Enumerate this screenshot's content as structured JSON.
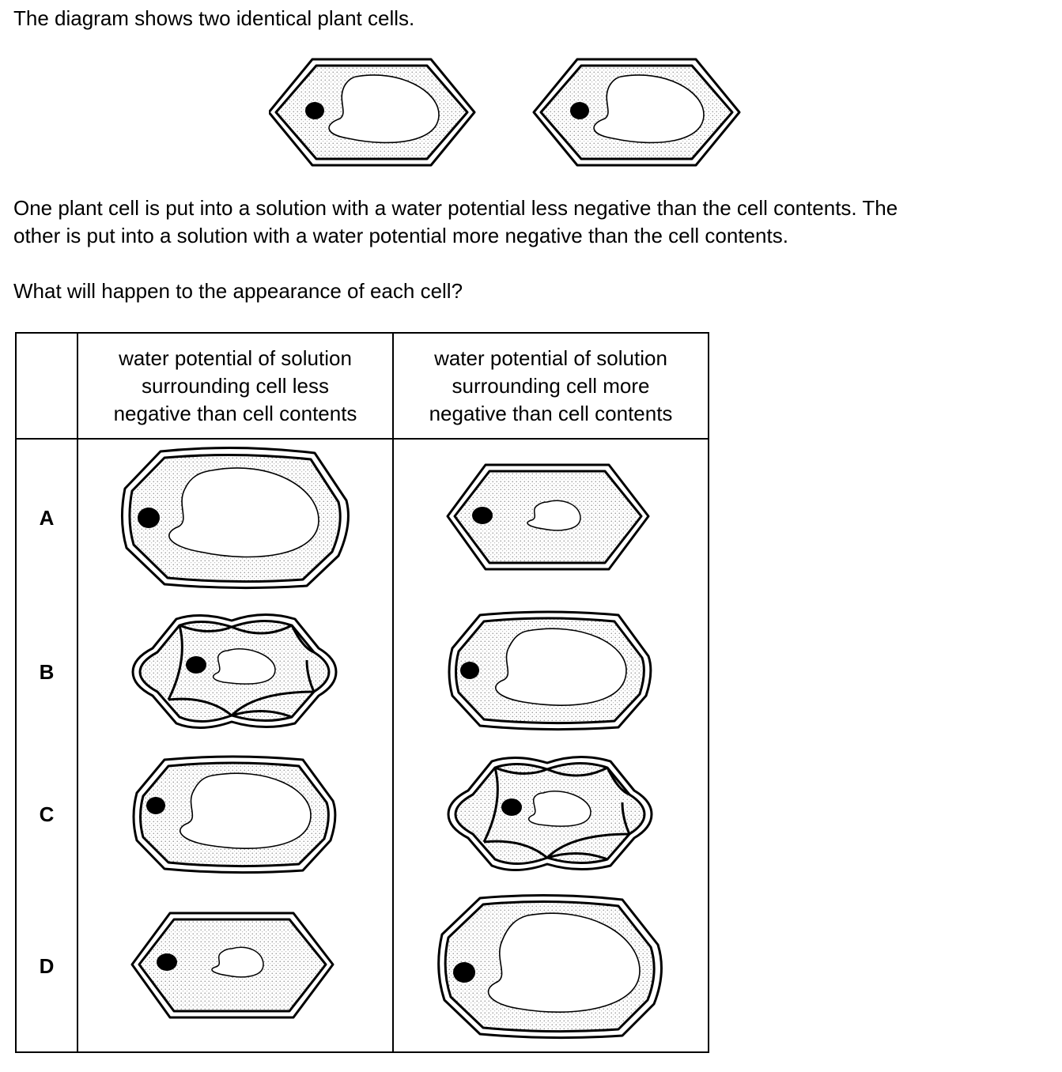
{
  "intro": "The diagram shows two identical plant cells.",
  "paragraph_line1": "One plant cell is put into a solution with a water potential less negative than the cell contents. The",
  "paragraph_line2": "other is put into a solution with a water potential more negative than the cell contents.",
  "question": "What will happen to the appearance of each cell?",
  "table": {
    "header_left": [
      "water potential of solution",
      "surrounding cell less",
      "negative than cell contents"
    ],
    "header_right": [
      "water potential of solution",
      "surrounding cell more",
      "negative than cell contents"
    ],
    "rows": [
      {
        "key": "A",
        "left": "turgid",
        "right": "small-vacuole"
      },
      {
        "key": "B",
        "left": "plasmolysed",
        "right": "turgid"
      },
      {
        "key": "C",
        "left": "turgid",
        "right": "plasmolysed"
      },
      {
        "key": "D",
        "left": "small-vacuole",
        "right": "large-turgid"
      }
    ]
  }
}
